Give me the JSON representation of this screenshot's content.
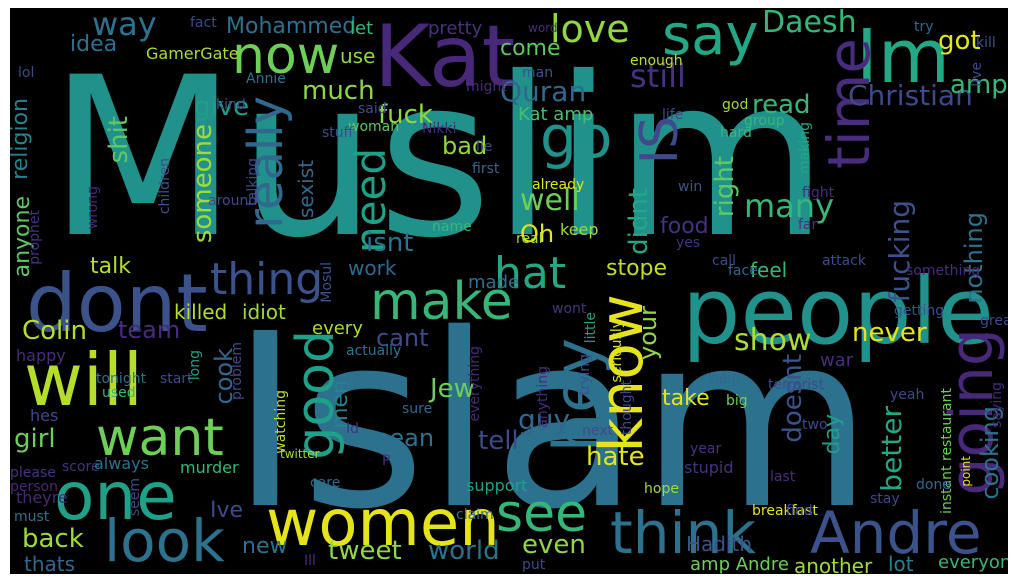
{
  "words": [
    {
      "text": "Muslim",
      "color": "#21918c"
    },
    {
      "text": "Islam",
      "color": "#2c728e"
    },
    {
      "text": "people",
      "color": "#21918c"
    },
    {
      "text": "Im",
      "color": "#22a884"
    },
    {
      "text": "Kat",
      "color": "#482878"
    },
    {
      "text": "dont",
      "color": "#3b528b"
    },
    {
      "text": "will",
      "color": "#b5de2b"
    },
    {
      "text": "one",
      "color": "#1fa088"
    },
    {
      "text": "women",
      "color": "#e5e419"
    },
    {
      "text": "think",
      "color": "#2c728e"
    },
    {
      "text": "Andre",
      "color": "#3b528b"
    },
    {
      "text": "look",
      "color": "#2c728e"
    },
    {
      "text": "want",
      "color": "#6ece58"
    },
    {
      "text": "see",
      "color": "#35b779"
    },
    {
      "text": "hey",
      "color": "#2c728e"
    },
    {
      "text": "know",
      "color": "#e5e419"
    },
    {
      "text": "good",
      "color": "#1fa088"
    },
    {
      "text": "going",
      "color": "#482878"
    },
    {
      "text": "make",
      "color": "#35b779"
    },
    {
      "text": "now",
      "color": "#6ece58"
    },
    {
      "text": "say",
      "color": "#22a884"
    },
    {
      "text": "go",
      "color": "#21918c"
    },
    {
      "text": "time",
      "color": "#472d7b"
    },
    {
      "text": "IS",
      "color": "#3e4a89"
    },
    {
      "text": "really",
      "color": "#31688e"
    },
    {
      "text": "thing",
      "color": "#3b528b"
    },
    {
      "text": "hat",
      "color": "#22a884"
    },
    {
      "text": "love",
      "color": "#90d743"
    },
    {
      "text": "way",
      "color": "#2c728e"
    },
    {
      "text": "need",
      "color": "#1fa088"
    },
    {
      "text": "Daesh",
      "color": "#35b779"
    },
    {
      "text": "Quran",
      "color": "#31688e"
    },
    {
      "text": "Christian",
      "color": "#3e4a89"
    },
    {
      "text": "fuck",
      "color": "#90d743"
    },
    {
      "text": "much",
      "color": "#90d743"
    },
    {
      "text": "still",
      "color": "#46327e"
    },
    {
      "text": "got",
      "color": "#e5e419"
    },
    {
      "text": "amp",
      "color": "#35b779"
    },
    {
      "text": "give",
      "color": "#1f9e89"
    },
    {
      "text": "shit",
      "color": "#5ec962"
    },
    {
      "text": "idea",
      "color": "#2c728e"
    },
    {
      "text": "religion",
      "color": "#26828e"
    },
    {
      "text": "anyone",
      "color": "#5ec962"
    },
    {
      "text": "someone",
      "color": "#a0da39"
    },
    {
      "text": "bad",
      "color": "#90d743"
    },
    {
      "text": "well",
      "color": "#6ece58"
    },
    {
      "text": "Oh",
      "color": "#e5e419"
    },
    {
      "text": "sexist",
      "color": "#31688e"
    },
    {
      "text": "isnt",
      "color": "#2c728e"
    },
    {
      "text": "many",
      "color": "#35b779"
    },
    {
      "text": "right",
      "color": "#5ec962"
    },
    {
      "text": "didnt",
      "color": "#22a884"
    },
    {
      "text": "food",
      "color": "#46327e"
    },
    {
      "text": "fucking",
      "color": "#3b528b"
    },
    {
      "text": "nothing",
      "color": "#2c728e"
    },
    {
      "text": "talk",
      "color": "#b5de2b"
    },
    {
      "text": "work",
      "color": "#31688e"
    },
    {
      "text": "stope",
      "color": "#bddf26"
    },
    {
      "text": "your",
      "color": "#90d743"
    },
    {
      "text": "Colin",
      "color": "#b5de2b"
    },
    {
      "text": "team",
      "color": "#472d7b"
    },
    {
      "text": "cant",
      "color": "#3e4a89"
    },
    {
      "text": "show",
      "color": "#addc30"
    },
    {
      "text": "never",
      "color": "#e5e419"
    },
    {
      "text": "cook",
      "color": "#31688e"
    },
    {
      "text": "men",
      "color": "#26828e"
    },
    {
      "text": "guy",
      "color": "#31688e"
    },
    {
      "text": "Jew",
      "color": "#6ece58"
    },
    {
      "text": "take",
      "color": "#e5e419"
    },
    {
      "text": "girl",
      "color": "#6ece58"
    },
    {
      "text": "tell",
      "color": "#3e4a89"
    },
    {
      "text": "mean",
      "color": "#2c728e"
    },
    {
      "text": "hate",
      "color": "#e5e419"
    },
    {
      "text": "doesnt",
      "color": "#3b528b"
    },
    {
      "text": "day",
      "color": "#1fa088"
    },
    {
      "text": "better",
      "color": "#22a884"
    },
    {
      "text": "cooking",
      "color": "#2c728e"
    },
    {
      "text": "back",
      "color": "#a0da39"
    },
    {
      "text": "Ive",
      "color": "#3e4a89"
    },
    {
      "text": "new",
      "color": "#2c728e"
    },
    {
      "text": "tweet",
      "color": "#90d743"
    },
    {
      "text": "world",
      "color": "#2c728e"
    },
    {
      "text": "even",
      "color": "#90d743"
    },
    {
      "text": "thats",
      "color": "#31688e"
    },
    {
      "text": "Mohammed",
      "color": "#2c728e"
    },
    {
      "text": "come",
      "color": "#5ec962"
    },
    {
      "text": "read",
      "color": "#35b779"
    },
    {
      "text": "Kat amp",
      "color": "#44bf70"
    },
    {
      "text": "killed",
      "color": "#b5de2b"
    },
    {
      "text": "idiot",
      "color": "#a0da39"
    },
    {
      "text": "every",
      "color": "#addc30"
    },
    {
      "text": "made",
      "color": "#2c728e"
    },
    {
      "text": "feel",
      "color": "#35b779"
    },
    {
      "text": "keep",
      "color": "#a0da39"
    },
    {
      "text": "Hadith",
      "color": "#3b528b"
    },
    {
      "text": "amp Andre",
      "color": "#6ece58"
    },
    {
      "text": "another",
      "color": "#a0da39"
    },
    {
      "text": "lot",
      "color": "#26828e"
    },
    {
      "text": "everyone",
      "color": "#35b779"
    },
    {
      "text": "GamerGate",
      "color": "#addc30"
    },
    {
      "text": "use",
      "color": "#90d743"
    },
    {
      "text": "let",
      "color": "#35b779"
    },
    {
      "text": "pretty",
      "color": "#46327e"
    },
    {
      "text": "word",
      "color": "#472d7b"
    },
    {
      "text": "try",
      "color": "#31688e"
    },
    {
      "text": "lol",
      "color": "#3e4a89"
    },
    {
      "text": "fact",
      "color": "#3e4a89"
    },
    {
      "text": "kill",
      "color": "#3b528b"
    },
    {
      "text": "live",
      "color": "#3e4a89"
    },
    {
      "text": "enough",
      "color": "#bddf26"
    },
    {
      "text": "Annie",
      "color": "#2c728e"
    },
    {
      "text": "man",
      "color": "#3b528b"
    },
    {
      "text": "might",
      "color": "#472d7b"
    },
    {
      "text": "god",
      "color": "#a0da39"
    },
    {
      "text": "life",
      "color": "#3e4a89"
    },
    {
      "text": "kind",
      "color": "#3b528b"
    },
    {
      "text": "said",
      "color": "#3b528b"
    },
    {
      "text": "woman",
      "color": "#5ec962"
    },
    {
      "text": "stuff",
      "color": "#3e4a89"
    },
    {
      "text": "Nikki",
      "color": "#482878"
    },
    {
      "text": "first",
      "color": "#31688e"
    },
    {
      "text": "lie",
      "color": "#3e4a89"
    },
    {
      "text": "already",
      "color": "#dde318"
    },
    {
      "text": "win",
      "color": "#3b528b"
    },
    {
      "text": "hard",
      "color": "#35b779"
    },
    {
      "text": "group",
      "color": "#35b779"
    },
    {
      "text": "making",
      "color": "#22a884"
    },
    {
      "text": "fight",
      "color": "#472d7b"
    },
    {
      "text": "far",
      "color": "#46327e"
    },
    {
      "text": "talking",
      "color": "#3e4a89"
    },
    {
      "text": "children",
      "color": "#3b528b"
    },
    {
      "text": "prophet",
      "color": "#46327e"
    },
    {
      "text": "wrong",
      "color": "#482878"
    },
    {
      "text": "around",
      "color": "#3e4a89"
    },
    {
      "text": "name",
      "color": "#35b779"
    },
    {
      "text": "real",
      "color": "#a0da39"
    },
    {
      "text": "yes",
      "color": "#46327e"
    },
    {
      "text": "call",
      "color": "#3e4a89"
    },
    {
      "text": "face",
      "color": "#31688e"
    },
    {
      "text": "attack",
      "color": "#3e4a89"
    },
    {
      "text": "something",
      "color": "#472d7b"
    },
    {
      "text": "believe",
      "color": "#3e4a89"
    },
    {
      "text": "Mosul",
      "color": "#3b528b"
    },
    {
      "text": "wont",
      "color": "#46327e"
    },
    {
      "text": "little",
      "color": "#1fa088"
    },
    {
      "text": "seriously",
      "color": "#dde318"
    },
    {
      "text": "getting",
      "color": "#3b528b"
    },
    {
      "text": "great",
      "color": "#3e4a89"
    },
    {
      "text": "happy",
      "color": "#472d7b"
    },
    {
      "text": "tonight",
      "color": "#2c728e"
    },
    {
      "text": "used",
      "color": "#35b779"
    },
    {
      "text": "start",
      "color": "#3e4a89"
    },
    {
      "text": "long",
      "color": "#1fa088"
    },
    {
      "text": "problem",
      "color": "#3e4a89"
    },
    {
      "text": "everything",
      "color": "#482878"
    },
    {
      "text": "trying",
      "color": "#3b528b"
    },
    {
      "text": "thought",
      "color": "#3e4a89"
    },
    {
      "text": "anything",
      "color": "#472d7b"
    },
    {
      "text": "actually",
      "color": "#2c728e"
    },
    {
      "text": "help",
      "color": "#31688e"
    },
    {
      "text": "terrorist",
      "color": "#3e4a89"
    },
    {
      "text": "war",
      "color": "#472d7b"
    },
    {
      "text": "instant restaurant",
      "color": "#6ece58"
    },
    {
      "text": "saying",
      "color": "#482878"
    },
    {
      "text": "yeah",
      "color": "#3e4a89"
    },
    {
      "text": "big",
      "color": "#6ece58"
    },
    {
      "text": "two",
      "color": "#3e4a89"
    },
    {
      "text": "hes",
      "color": "#3e4a89"
    },
    {
      "text": "watching",
      "color": "#bddf26"
    },
    {
      "text": "sure",
      "color": "#31688e"
    },
    {
      "text": "Id",
      "color": "#46327e"
    },
    {
      "text": "next",
      "color": "#3e4a89"
    },
    {
      "text": "score",
      "color": "#46327e"
    },
    {
      "text": "always",
      "color": "#2c728e"
    },
    {
      "text": "murder",
      "color": "#35b779"
    },
    {
      "text": "twitter",
      "color": "#a0da39"
    },
    {
      "text": "P",
      "color": "#46327e"
    },
    {
      "text": "year",
      "color": "#46327e"
    },
    {
      "text": "stupid",
      "color": "#46327e"
    },
    {
      "text": "point",
      "color": "#e5e419"
    },
    {
      "text": "please",
      "color": "#46327e"
    },
    {
      "text": "person",
      "color": "#482878"
    },
    {
      "text": "theyre",
      "color": "#482878"
    },
    {
      "text": "must",
      "color": "#2c728e"
    },
    {
      "text": "care",
      "color": "#31688e"
    },
    {
      "text": "support",
      "color": "#1fa088"
    },
    {
      "text": "hope",
      "color": "#a0da39"
    },
    {
      "text": "last",
      "color": "#472d7b"
    },
    {
      "text": "seem",
      "color": "#3e4a89"
    },
    {
      "text": "claim",
      "color": "#2c728e"
    },
    {
      "text": "Ill",
      "color": "#472d7b"
    },
    {
      "text": "put",
      "color": "#3e4a89"
    },
    {
      "text": "breakfast",
      "color": "#e5e419"
    },
    {
      "text": "find",
      "color": "#3e4a89"
    },
    {
      "text": "stay",
      "color": "#3e4a89"
    },
    {
      "text": "done",
      "color": "#31688e"
    },
    {
      "text": "follow",
      "color": "#472d7b"
    }
  ]
}
